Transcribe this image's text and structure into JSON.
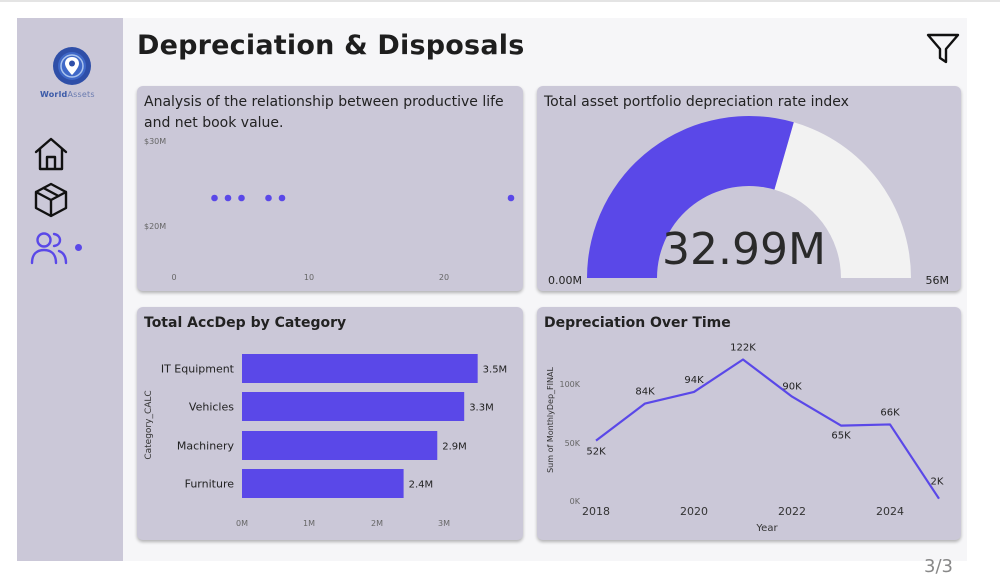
{
  "header": {
    "title": "Depreciation & Disposals",
    "page_indicator": "3/3"
  },
  "logo": {
    "brand_bold": "World",
    "brand_light": "Assets"
  },
  "sidebar": {
    "items": [
      {
        "icon": "home-icon"
      },
      {
        "icon": "box-icon"
      },
      {
        "icon": "users-icon",
        "active": true
      }
    ]
  },
  "scatter": {
    "title": "Analysis of the relationship between productive life and net book value.",
    "y_ticks": [
      "$30M",
      "$20M"
    ],
    "x_ticks": [
      "0",
      "10",
      "20"
    ]
  },
  "gauge": {
    "title": "Total asset portfolio depreciation rate index",
    "value_label": "32.99M",
    "min_label": "0.00M",
    "max_label": "56M",
    "value": 32.99,
    "max": 56,
    "fill_color": "#5a48e8",
    "track_color": "#f2f2f2"
  },
  "bar_chart": {
    "title": "Total AccDep by Category",
    "ylabel": "Category_CALC",
    "x_ticks": [
      "0M",
      "1M",
      "2M",
      "3M"
    ],
    "color": "#5a48e8"
  },
  "line_chart": {
    "title": "Depreciation Over Time",
    "ylabel": "Sum of MonthlyDep_FINAL",
    "xlabel": "Year",
    "y_ticks": [
      "100K",
      "50K",
      "0K"
    ],
    "x_ticks": [
      "2018",
      "2020",
      "2022",
      "2024"
    ],
    "color": "#5a48e8"
  },
  "chart_data": [
    {
      "type": "scatter",
      "title": "Analysis of the relationship between productive life and net book value.",
      "xlim": [
        0,
        25
      ],
      "ylim": [
        15,
        35
      ],
      "points": [
        {
          "x": 3,
          "y": 27
        },
        {
          "x": 4,
          "y": 27
        },
        {
          "x": 5,
          "y": 27
        },
        {
          "x": 7,
          "y": 27
        },
        {
          "x": 8,
          "y": 27
        },
        {
          "x": 25,
          "y": 27
        }
      ],
      "color": "#5a48e8"
    },
    {
      "type": "bar",
      "orientation": "horizontal",
      "title": "Total AccDep by Category",
      "ylabel": "Category_CALC",
      "categories": [
        "IT Equipment",
        "Vehicles",
        "Machinery",
        "Furniture"
      ],
      "values": [
        3.5,
        3.3,
        2.9,
        2.4
      ],
      "labels": [
        "3.5M",
        "3.3M",
        "2.9M",
        "2.4M"
      ],
      "xlim": [
        0,
        3.5
      ]
    },
    {
      "type": "line",
      "title": "Depreciation Over Time",
      "xlabel": "Year",
      "ylabel": "Sum of MonthlyDep_FINAL",
      "x": [
        2018,
        2019,
        2020,
        2021,
        2022,
        2023,
        2024,
        2025
      ],
      "values": [
        52,
        84,
        94,
        122,
        90,
        65,
        66,
        2
      ],
      "labels": [
        "52K",
        "84K",
        "94K",
        "122K",
        "90K",
        "65K",
        "66K",
        "2K"
      ],
      "ylim": [
        0,
        130
      ],
      "xlim": [
        2017.7,
        2025
      ]
    }
  ]
}
